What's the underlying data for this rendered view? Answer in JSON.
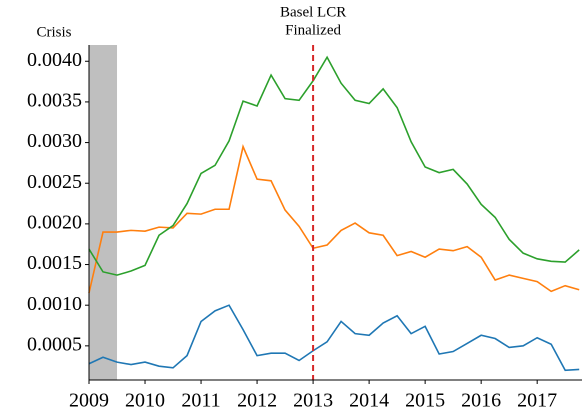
{
  "chart_data": {
    "type": "line",
    "annotations": {
      "crisis": "Crisis",
      "basel": [
        "Basel LCR",
        "Finalized"
      ]
    },
    "shade": {
      "range": [
        2009,
        2009.5
      ],
      "color": "#bfbfbf"
    },
    "vline": {
      "x": 2013,
      "color": "#d62728"
    },
    "x": [
      2009,
      2009.25,
      2009.5,
      2009.75,
      2010,
      2010.25,
      2010.5,
      2010.75,
      2011,
      2011.25,
      2011.5,
      2011.75,
      2012,
      2012.25,
      2012.5,
      2012.75,
      2013,
      2013.25,
      2013.5,
      2013.75,
      2014,
      2014.25,
      2014.5,
      2014.75,
      2015,
      2015.25,
      2015.5,
      2015.75,
      2016,
      2016.25,
      2016.5,
      2016.75,
      2017,
      2017.25,
      2017.5,
      2017.75
    ],
    "series": [
      {
        "color": "#1f77b4",
        "values": [
          0.00028,
          0.00036,
          0.0003,
          0.00027,
          0.0003,
          0.00025,
          0.00023,
          0.00038,
          0.0008,
          0.00093,
          0.001,
          0.0007,
          0.00038,
          0.00041,
          0.00041,
          0.00032,
          0.00044,
          0.00055,
          0.0008,
          0.00065,
          0.00063,
          0.00078,
          0.00087,
          0.00065,
          0.00074,
          0.0004,
          0.00043,
          0.00053,
          0.00063,
          0.00059,
          0.00048,
          0.0005,
          0.0006,
          0.00052,
          0.0002,
          0.00021
        ]
      },
      {
        "color": "#ff7f0e",
        "values": [
          0.00115,
          0.0019,
          0.0019,
          0.00192,
          0.00191,
          0.00196,
          0.00195,
          0.00213,
          0.00212,
          0.00218,
          0.00218,
          0.00295,
          0.00255,
          0.00253,
          0.00217,
          0.00197,
          0.0017,
          0.00174,
          0.00192,
          0.00201,
          0.00189,
          0.00186,
          0.00161,
          0.00166,
          0.00159,
          0.00169,
          0.00167,
          0.00172,
          0.00159,
          0.00131,
          0.00137,
          0.00133,
          0.00129,
          0.00117,
          0.00124,
          0.00119
        ]
      },
      {
        "color": "#2ca02c",
        "values": [
          0.00169,
          0.00141,
          0.00137,
          0.00142,
          0.00149,
          0.00186,
          0.00198,
          0.00225,
          0.00262,
          0.00272,
          0.00302,
          0.00351,
          0.00345,
          0.00383,
          0.00354,
          0.00352,
          0.00376,
          0.00405,
          0.00373,
          0.00352,
          0.00348,
          0.00366,
          0.00343,
          0.00301,
          0.0027,
          0.00263,
          0.00267,
          0.00249,
          0.00224,
          0.00208,
          0.00181,
          0.00164,
          0.00157,
          0.00154,
          0.00153,
          0.00168
        ]
      }
    ],
    "xlim": [
      2009,
      2017.8
    ],
    "xticks": [
      2009,
      2010,
      2011,
      2012,
      2013,
      2014,
      2015,
      2016,
      2017
    ],
    "ylim": [
      8e-05,
      0.0042
    ],
    "yticks": [
      0.0005,
      {
        "value": 0.001,
        "label": "0.0010"
      },
      0.0015,
      {
        "value": 0.002,
        "label": "0.0020"
      },
      0.0025,
      {
        "value": 0.003,
        "label": "0.0030"
      },
      0.0035,
      {
        "value": 0.004,
        "label": "0.0040"
      }
    ]
  }
}
